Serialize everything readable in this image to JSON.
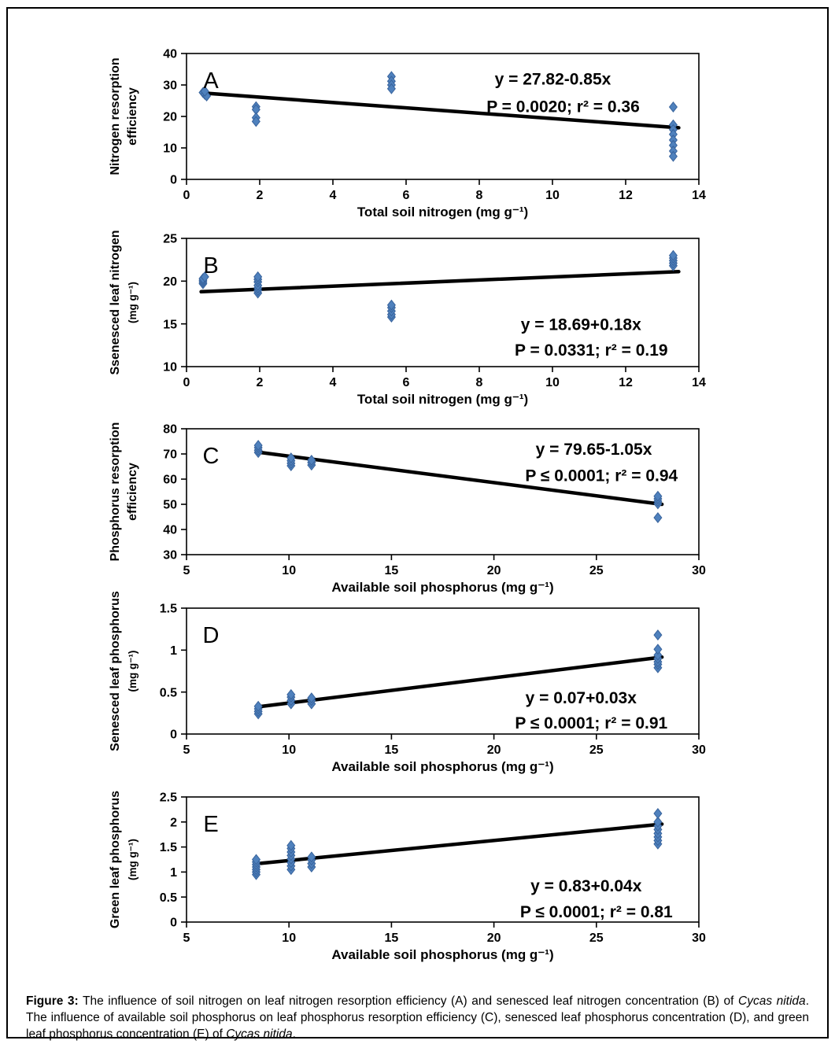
{
  "colors": {
    "point_fill": "#4f81bd",
    "point_stroke": "#38639c",
    "trend_line": "#000000",
    "text": "#000000",
    "frame_border": "#000000"
  },
  "chart_data": [
    {
      "type": "scatter",
      "letter": "A",
      "xlabel": "Total soil nitrogen (mg g⁻¹)",
      "ylabel_lines": [
        "Nitrogen resorption",
        "efficiency"
      ],
      "xlim": [
        0,
        14
      ],
      "xticks": [
        "0",
        "2",
        "4",
        "6",
        "8",
        "10",
        "12",
        "14"
      ],
      "ylim": [
        0,
        40
      ],
      "yticks": [
        "0",
        "10",
        "20",
        "30",
        "40"
      ],
      "grid": false,
      "points": [
        [
          0.45,
          27.6
        ],
        [
          0.5,
          27.0
        ],
        [
          0.55,
          26.5
        ],
        [
          0.5,
          28.0
        ],
        [
          1.9,
          23.1
        ],
        [
          1.9,
          22.2
        ],
        [
          1.9,
          19.6
        ],
        [
          1.9,
          18.4
        ],
        [
          5.6,
          32.7
        ],
        [
          5.6,
          31.2
        ],
        [
          5.6,
          30.0
        ],
        [
          5.6,
          28.8
        ],
        [
          13.3,
          23.0
        ],
        [
          13.3,
          17.3
        ],
        [
          13.3,
          15.8
        ],
        [
          13.3,
          14.3
        ],
        [
          13.3,
          12.5
        ],
        [
          13.3,
          10.8
        ],
        [
          13.3,
          9.0
        ],
        [
          13.3,
          7.3
        ]
      ],
      "trendline": {
        "x1": 0.5,
        "y1": 27.4,
        "x2": 13.45,
        "y2": 16.4
      },
      "equation": "y = 27.82-0.85x",
      "stats": "P = 0.0020; r² = 0.36",
      "annotation_pos": {
        "eq": [
          0.715,
          0.2
        ],
        "stats": [
          0.735,
          0.42
        ]
      }
    },
    {
      "type": "scatter",
      "letter": "B",
      "xlabel": "Total soil nitrogen (mg g⁻¹)",
      "ylabel_lines": [
        "Ssenesced leaf nitrogen",
        "(mg g⁻¹)"
      ],
      "xlim": [
        0,
        14
      ],
      "xticks": [
        "0",
        "2",
        "4",
        "6",
        "8",
        "10",
        "12",
        "14"
      ],
      "ylim": [
        10,
        25
      ],
      "yticks": [
        "10",
        "15",
        "20",
        "25"
      ],
      "grid": false,
      "points": [
        [
          0.45,
          19.7
        ],
        [
          0.45,
          19.9
        ],
        [
          0.45,
          20.1
        ],
        [
          0.45,
          20.3
        ],
        [
          0.5,
          20.5
        ],
        [
          1.95,
          18.6
        ],
        [
          1.95,
          18.9
        ],
        [
          1.95,
          19.2
        ],
        [
          1.95,
          19.5
        ],
        [
          1.95,
          19.9
        ],
        [
          1.95,
          20.2
        ],
        [
          1.95,
          20.5
        ],
        [
          5.6,
          15.8
        ],
        [
          5.6,
          16.1
        ],
        [
          5.6,
          16.5
        ],
        [
          5.6,
          16.9
        ],
        [
          5.6,
          17.2
        ],
        [
          13.3,
          21.8
        ],
        [
          13.3,
          22.1
        ],
        [
          13.3,
          22.4
        ],
        [
          13.3,
          22.7
        ],
        [
          13.3,
          23.0
        ]
      ],
      "trendline": {
        "x1": 0.4,
        "y1": 18.76,
        "x2": 13.45,
        "y2": 21.11
      },
      "equation": "y = 18.69+0.18x",
      "stats": "P = 0.0331; r² = 0.19",
      "annotation_pos": {
        "eq": [
          0.77,
          0.67
        ],
        "stats": [
          0.79,
          0.87
        ]
      }
    },
    {
      "type": "scatter",
      "letter": "C",
      "xlabel": "Available soil phosphorus (mg g⁻¹)",
      "ylabel_lines": [
        "Phosphorus resorption",
        "efficiency"
      ],
      "xlim": [
        5,
        30
      ],
      "xticks": [
        "5",
        "10",
        "15",
        "20",
        "25",
        "30"
      ],
      "ylim": [
        30,
        80
      ],
      "yticks": [
        "30",
        "40",
        "50",
        "60",
        "70",
        "80"
      ],
      "grid": false,
      "points": [
        [
          8.5,
          70.6
        ],
        [
          8.5,
          71.5
        ],
        [
          8.5,
          72.5
        ],
        [
          8.5,
          73.4
        ],
        [
          10.1,
          65.3
        ],
        [
          10.1,
          66.3
        ],
        [
          10.1,
          67.3
        ],
        [
          10.1,
          68.4
        ],
        [
          11.1,
          65.6
        ],
        [
          11.1,
          66.6
        ],
        [
          11.1,
          67.5
        ],
        [
          28,
          44.7
        ],
        [
          28,
          50.2
        ],
        [
          28,
          51.2
        ],
        [
          28,
          52.2
        ],
        [
          28,
          53.2
        ]
      ],
      "trendline": {
        "x1": 8.5,
        "y1": 70.7,
        "x2": 28.2,
        "y2": 50.0
      },
      "equation": "y = 79.65-1.05x",
      "stats": "P ≤ 0.0001; r² = 0.94",
      "annotation_pos": {
        "eq": [
          0.795,
          0.16
        ],
        "stats": [
          0.81,
          0.37
        ]
      }
    },
    {
      "type": "scatter",
      "letter": "D",
      "xlabel": "Available soil phosphorus (mg g⁻¹)",
      "ylabel_lines": [
        "Senesced leaf phosphorus",
        "(mg g⁻¹)"
      ],
      "xlim": [
        5,
        30
      ],
      "xticks": [
        "5",
        "10",
        "15",
        "20",
        "25",
        "30"
      ],
      "ylim": [
        0,
        1.5
      ],
      "yticks": [
        "0",
        "0.5",
        "1",
        "1.5"
      ],
      "grid": false,
      "points": [
        [
          8.5,
          0.24
        ],
        [
          8.5,
          0.27
        ],
        [
          8.5,
          0.3
        ],
        [
          8.5,
          0.33
        ],
        [
          10.1,
          0.36
        ],
        [
          10.1,
          0.4
        ],
        [
          10.1,
          0.44
        ],
        [
          10.1,
          0.47
        ],
        [
          11.1,
          0.36
        ],
        [
          11.1,
          0.4
        ],
        [
          11.1,
          0.43
        ],
        [
          28,
          0.79
        ],
        [
          28,
          0.83
        ],
        [
          28,
          0.86
        ],
        [
          28,
          0.9
        ],
        [
          28,
          0.94
        ],
        [
          28,
          1.01
        ],
        [
          28,
          1.18
        ]
      ],
      "trendline": {
        "x1": 8.5,
        "y1": 0.325,
        "x2": 28.2,
        "y2": 0.916
      },
      "equation": "y = 0.07+0.03x",
      "stats": "P ≤ 0.0001; r² = 0.91",
      "annotation_pos": {
        "eq": [
          0.77,
          0.71
        ],
        "stats": [
          0.79,
          0.91
        ]
      }
    },
    {
      "type": "scatter",
      "letter": "E",
      "xlabel": "Available soil phosphorus (mg g⁻¹)",
      "ylabel_lines": [
        "Green leaf phosphorus",
        "(mg g⁻¹)"
      ],
      "xlim": [
        5,
        30
      ],
      "xticks": [
        "5",
        "10",
        "15",
        "20",
        "25",
        "30"
      ],
      "ylim": [
        0,
        2.5
      ],
      "yticks": [
        "0",
        "0.5",
        "1",
        "1.5",
        "2",
        "2.5"
      ],
      "grid": false,
      "points": [
        [
          8.4,
          0.95
        ],
        [
          8.4,
          1.0
        ],
        [
          8.4,
          1.05
        ],
        [
          8.4,
          1.1
        ],
        [
          8.4,
          1.15
        ],
        [
          8.4,
          1.2
        ],
        [
          8.4,
          1.25
        ],
        [
          10.1,
          1.05
        ],
        [
          10.1,
          1.12
        ],
        [
          10.1,
          1.19
        ],
        [
          10.1,
          1.26
        ],
        [
          10.1,
          1.33
        ],
        [
          10.1,
          1.4
        ],
        [
          10.1,
          1.47
        ],
        [
          10.1,
          1.53
        ],
        [
          11.1,
          1.1
        ],
        [
          11.1,
          1.17
        ],
        [
          11.1,
          1.24
        ],
        [
          11.1,
          1.3
        ],
        [
          28,
          1.56
        ],
        [
          28,
          1.63
        ],
        [
          28,
          1.7
        ],
        [
          28,
          1.77
        ],
        [
          28,
          1.85
        ],
        [
          28,
          1.92
        ],
        [
          28,
          2.0
        ],
        [
          28,
          2.17
        ]
      ],
      "trendline": {
        "x1": 8.5,
        "y1": 1.17,
        "x2": 28.2,
        "y2": 1.958
      },
      "equation": "y = 0.83+0.04x",
      "stats": "P ≤ 0.0001; r² = 0.81",
      "annotation_pos": {
        "eq": [
          0.78,
          0.71
        ],
        "stats": [
          0.8,
          0.915
        ]
      }
    }
  ],
  "caption": {
    "segments": [
      {
        "t": "Figure 3:",
        "b": true
      },
      {
        "t": " The influence of soil nitrogen on leaf nitrogen resorption efficiency (A) and senesced leaf nitrogen concentration (B) of "
      },
      {
        "t": "Cycas nitida",
        "i": true
      },
      {
        "t": ". The influence of available soil phosphorus on leaf phosphorus resorption efficiency (C), senesced leaf phosphorus concentration (D), and green leaf phosphorus concentration (E) of "
      },
      {
        "t": "Cycas nitida",
        "i": true
      },
      {
        "t": "."
      }
    ]
  }
}
